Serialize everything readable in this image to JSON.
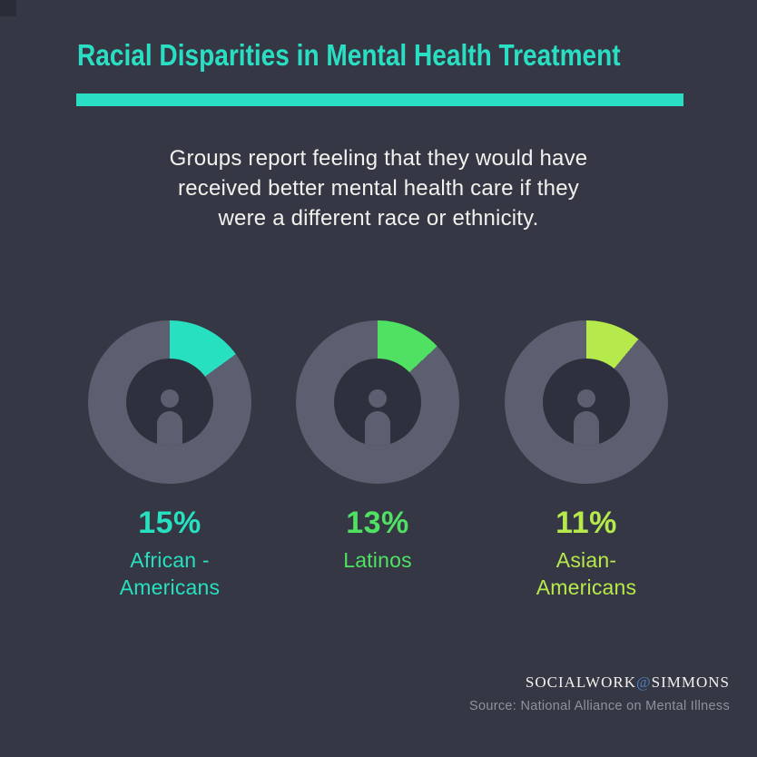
{
  "page": {
    "background": "#353744",
    "accent": "#2adec3",
    "ring_color": "#5c5f70",
    "hole_color": "#2e303d",
    "corner_color": "#2a2c37"
  },
  "header": {
    "title": "Racial Disparities in Mental Health Treatment"
  },
  "intro": {
    "text": "Groups report feeling that they would have\nreceived better mental health care if they\nwere a different race or ethnicity."
  },
  "donuts": [
    {
      "pct_label": "15%",
      "name": "African -\nAmericans",
      "value": 15,
      "color": "#27e0c0"
    },
    {
      "pct_label": "13%",
      "name": "Latinos",
      "value": 13,
      "color": "#50e163"
    },
    {
      "pct_label": "11%",
      "name": "Asian-\nAmericans",
      "value": 11,
      "color": "#b6e94b"
    }
  ],
  "footer": {
    "brand_left": "SOCIALWORK",
    "brand_at": "@",
    "brand_right": "SIMMONS",
    "brand_at_color": "#4d80bd",
    "source": "Source: National Alliance on Mental Illness"
  },
  "chart_data": {
    "type": "pie",
    "title": "Racial Disparities in Mental Health Treatment",
    "subtitle": "Groups report feeling that they would have received better mental health care if they were a different race or ethnicity.",
    "unit": "percent of group, shown as donut wedge starting at 12 o'clock clockwise",
    "legend_position": "below-each-donut",
    "groups": [
      {
        "label": "African - Americans",
        "value": 15,
        "color": "#27e0c0"
      },
      {
        "label": "Latinos",
        "value": 13,
        "color": "#50e163"
      },
      {
        "label": "Asian- Americans",
        "value": 11,
        "color": "#b6e94b"
      }
    ]
  }
}
